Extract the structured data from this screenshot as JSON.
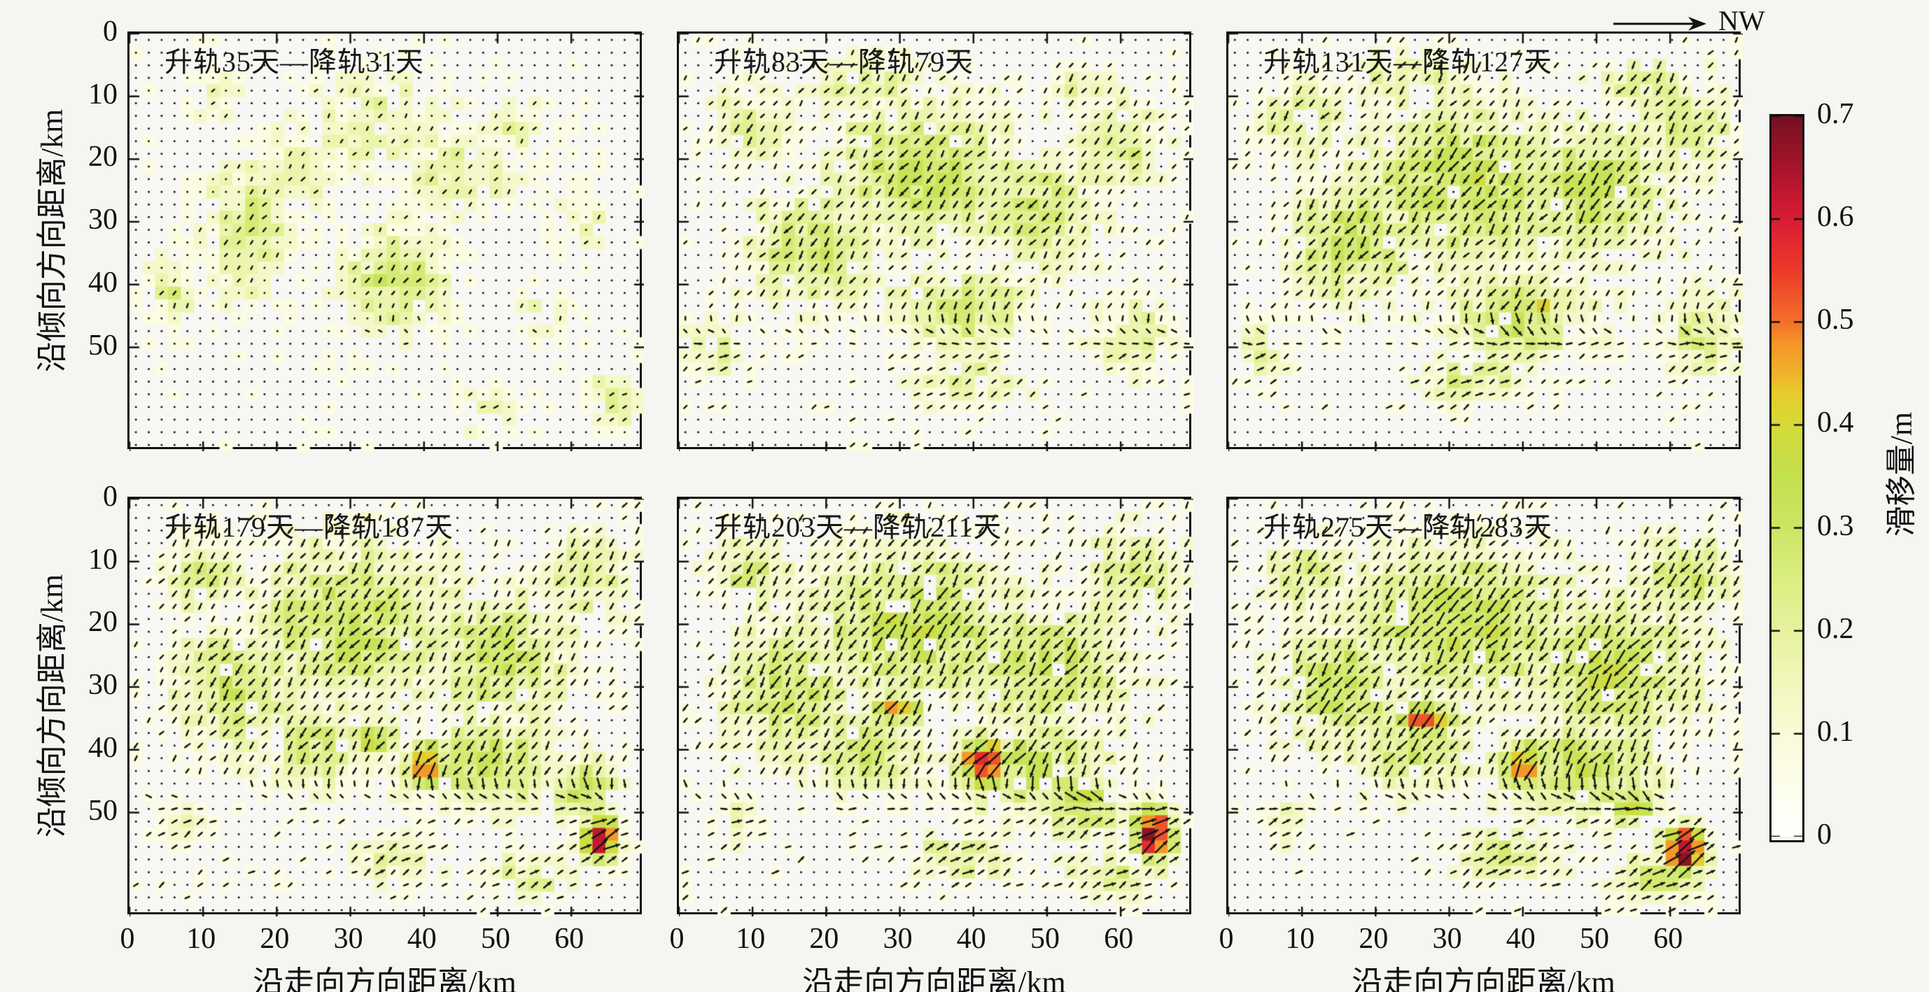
{
  "figure": {
    "north_arrow_label": "NW",
    "x_axis": {
      "label": "沿走向方向距离/km",
      "ticks": [
        0,
        10,
        20,
        30,
        40,
        50,
        60
      ],
      "range_km": [
        0,
        70
      ]
    },
    "y_axis": {
      "label": "沿倾向方向距离/km",
      "ticks": [
        0,
        10,
        20,
        30,
        40,
        50
      ],
      "range_km": [
        0,
        66
      ]
    },
    "colorbar": {
      "title": "滑移量/m",
      "min": 0,
      "max": 0.7,
      "tick_labels": [
        "0.7",
        "0.6",
        "0.5",
        "0.4",
        "0.3",
        "0.2",
        "0.1",
        "0"
      ]
    }
  },
  "chart_data": {
    "type": "heatmap",
    "variant": "slip-magnitude-contour-with-displacement-quiver",
    "unit": "m",
    "value_label": "滑移量/m",
    "colormap": [
      [
        0.0,
        "#ffffff"
      ],
      [
        0.05,
        "#fdfdec"
      ],
      [
        0.1,
        "#f9fbd8"
      ],
      [
        0.15,
        "#f1f7bb"
      ],
      [
        0.2,
        "#e7f29e"
      ],
      [
        0.25,
        "#dbee82"
      ],
      [
        0.3,
        "#cce663"
      ],
      [
        0.35,
        "#c3e04e"
      ],
      [
        0.4,
        "#d6da38"
      ],
      [
        0.43,
        "#e6cd2e"
      ],
      [
        0.45,
        "#efb32a"
      ],
      [
        0.48,
        "#f49428"
      ],
      [
        0.5,
        "#f4702a"
      ],
      [
        0.55,
        "#ec3a28"
      ],
      [
        0.6,
        "#da1c35"
      ],
      [
        0.65,
        "#a8142b"
      ],
      [
        0.7,
        "#731020"
      ]
    ],
    "panels": [
      {
        "title": "升轨35天—降轨31天",
        "row": 0,
        "col": 0,
        "arrow_amp": 0.5,
        "max_slip": 0.3,
        "blobs": [
          [
            16,
            31,
            6,
            11,
            0.24
          ],
          [
            36,
            39,
            8,
            9,
            0.27
          ],
          [
            33,
            14,
            10,
            8,
            0.18
          ],
          [
            45,
            22,
            9,
            8,
            0.17
          ],
          [
            22,
            22,
            6,
            6,
            0.2
          ],
          [
            6,
            41,
            4,
            5,
            0.2
          ],
          [
            52,
            15,
            6,
            5,
            0.14
          ],
          [
            62,
            30,
            4,
            6,
            0.13
          ],
          [
            66,
            59,
            4,
            5,
            0.22
          ],
          [
            49,
            60,
            5,
            4,
            0.15
          ],
          [
            57,
            44,
            4,
            4,
            0.15
          ],
          [
            12,
            10,
            5,
            4,
            0.12
          ]
        ]
      },
      {
        "title": "升轨83天—降轨79天",
        "row": 0,
        "col": 1,
        "arrow_amp": 0.85,
        "max_slip": 0.35,
        "blobs": [
          [
            33,
            22,
            14,
            12,
            0.3
          ],
          [
            18,
            34,
            9,
            10,
            0.28
          ],
          [
            48,
            28,
            10,
            10,
            0.26
          ],
          [
            60,
            18,
            7,
            8,
            0.22
          ],
          [
            38,
            44,
            10,
            7,
            0.26
          ],
          [
            10,
            15,
            6,
            7,
            0.2
          ],
          [
            5,
            50,
            4,
            5,
            0.22
          ],
          [
            40,
            55,
            8,
            5,
            0.2
          ],
          [
            62,
            48,
            6,
            6,
            0.2
          ],
          [
            25,
            8,
            8,
            5,
            0.2
          ],
          [
            55,
            8,
            6,
            4,
            0.18
          ]
        ]
      },
      {
        "title": "升轨131天—降轨127天",
        "row": 0,
        "col": 2,
        "arrow_amp": 1.0,
        "max_slip": 0.46,
        "blobs": [
          [
            32,
            24,
            15,
            13,
            0.33
          ],
          [
            17,
            33,
            9,
            10,
            0.3
          ],
          [
            50,
            25,
            11,
            11,
            0.3
          ],
          [
            62,
            15,
            7,
            8,
            0.26
          ],
          [
            40,
            45,
            11,
            8,
            0.28
          ],
          [
            10,
            14,
            6,
            7,
            0.24
          ],
          [
            43,
            44,
            2,
            2,
            0.46
          ],
          [
            25,
            8,
            9,
            5,
            0.22
          ],
          [
            57,
            8,
            7,
            4,
            0.22
          ],
          [
            64,
            48,
            6,
            7,
            0.24
          ],
          [
            5,
            50,
            4,
            5,
            0.2
          ],
          [
            33,
            55,
            8,
            4,
            0.22
          ]
        ]
      },
      {
        "title": "升轨179天—降轨187天",
        "row": 1,
        "col": 0,
        "arrow_amp": 1.05,
        "max_slip": 0.64,
        "blobs": [
          [
            30,
            20,
            16,
            13,
            0.3
          ],
          [
            15,
            30,
            9,
            11,
            0.28
          ],
          [
            50,
            25,
            11,
            11,
            0.28
          ],
          [
            62,
            12,
            7,
            7,
            0.24
          ],
          [
            48,
            42,
            10,
            8,
            0.3
          ],
          [
            10,
            12,
            6,
            6,
            0.22
          ],
          [
            25,
            40,
            7,
            7,
            0.26
          ],
          [
            40.5,
            42.5,
            3.2,
            4,
            0.52
          ],
          [
            64,
            54,
            2.6,
            4,
            0.64
          ],
          [
            33,
            38,
            3,
            3,
            0.4
          ],
          [
            36,
            57,
            7,
            4,
            0.2
          ],
          [
            62,
            46,
            5,
            6,
            0.3
          ],
          [
            55,
            60,
            6,
            4,
            0.2
          ],
          [
            8,
            52,
            3,
            4,
            0.15
          ]
        ]
      },
      {
        "title": "升轨203天—降轨211天",
        "row": 1,
        "col": 1,
        "arrow_amp": 1.2,
        "max_slip": 0.68,
        "blobs": [
          [
            32,
            20,
            16,
            13,
            0.32
          ],
          [
            15,
            30,
            9,
            11,
            0.3
          ],
          [
            50,
            27,
            12,
            11,
            0.3
          ],
          [
            62,
            12,
            7,
            7,
            0.26
          ],
          [
            48,
            43,
            11,
            8,
            0.3
          ],
          [
            10,
            12,
            6,
            6,
            0.24
          ],
          [
            25,
            40,
            8,
            7,
            0.28
          ],
          [
            29.5,
            33.5,
            4,
            2.6,
            0.5
          ],
          [
            41.5,
            42,
            4,
            4.5,
            0.56
          ],
          [
            64.5,
            53.5,
            2.8,
            4.5,
            0.68
          ],
          [
            38,
            57,
            8,
            4,
            0.22
          ],
          [
            55,
            49,
            5,
            5,
            0.34
          ],
          [
            8,
            52,
            3,
            4,
            0.18
          ],
          [
            58,
            60,
            6,
            4,
            0.24
          ]
        ]
      },
      {
        "title": "升轨275天—降轨283天",
        "row": 1,
        "col": 2,
        "arrow_amp": 1.25,
        "max_slip": 0.72,
        "blobs": [
          [
            32,
            20,
            16,
            13,
            0.33
          ],
          [
            15,
            30,
            9,
            11,
            0.3
          ],
          [
            52,
            27,
            12,
            11,
            0.32
          ],
          [
            62,
            12,
            7,
            7,
            0.28
          ],
          [
            48,
            43,
            11,
            8,
            0.32
          ],
          [
            10,
            12,
            6,
            6,
            0.24
          ],
          [
            25,
            40,
            8,
            7,
            0.28
          ],
          [
            27,
            35,
            5,
            2.8,
            0.52
          ],
          [
            40,
            42.5,
            3.5,
            4.5,
            0.5
          ],
          [
            62,
            56,
            2.8,
            4.2,
            0.72
          ],
          [
            55,
            49,
            3.5,
            3,
            0.42
          ],
          [
            38,
            57,
            8,
            4,
            0.22
          ],
          [
            8,
            52,
            3,
            4,
            0.18
          ],
          [
            58,
            61,
            6,
            4,
            0.26
          ]
        ]
      }
    ]
  }
}
